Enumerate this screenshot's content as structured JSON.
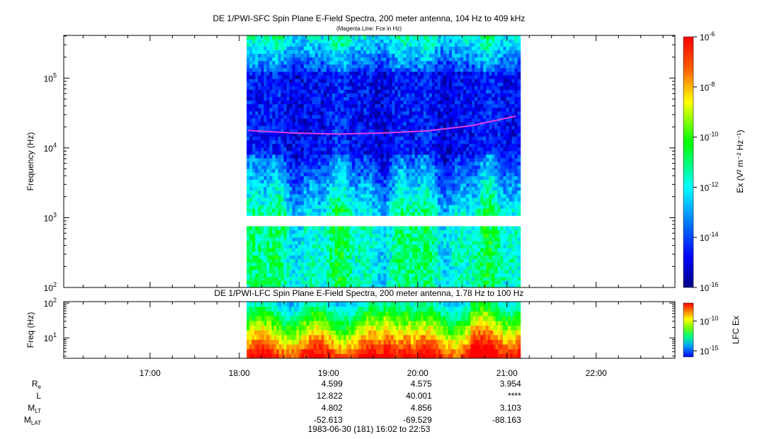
{
  "chart_data": [
    {
      "type": "heatmap",
      "title": "DE 1/PWI-SFC  Spin Plane E-Field Spectra, 200 meter antenna, 104 Hz to 409 kHz",
      "subtitle": "(Magenta Line: Fce in Hz)",
      "ylabel": "Frequency (Hz)",
      "yscale": "log",
      "ylim": [
        100,
        409000
      ],
      "y_ticks": [
        {
          "value": 100,
          "base": "10",
          "exp": "2"
        },
        {
          "value": 1000,
          "base": "10",
          "exp": "3"
        },
        {
          "value": 10000,
          "base": "10",
          "exp": "4"
        },
        {
          "value": 100000,
          "base": "10",
          "exp": "5"
        }
      ],
      "x_range_hours": [
        16.033,
        22.883
      ],
      "data_coverage_hours": [
        18.083,
        21.15
      ],
      "data_gap_hz": [
        800,
        1000
      ],
      "colorbar": {
        "label": "Ex (V² m⁻² Hz⁻¹)",
        "scale": "log",
        "range": [
          1e-16,
          1e-06
        ],
        "ticks": [
          {
            "value": 1e-16,
            "base": "10",
            "exp": "-16"
          },
          {
            "value": 1e-14,
            "base": "10",
            "exp": "-14"
          },
          {
            "value": 1e-12,
            "base": "10",
            "exp": "-12"
          },
          {
            "value": 1e-10,
            "base": "10",
            "exp": "-10"
          },
          {
            "value": 1e-08,
            "base": "10",
            "exp": "-8"
          },
          {
            "value": 1e-06,
            "base": "10",
            "exp": "-6"
          }
        ]
      },
      "fce_line": {
        "color": "#e040e0",
        "points": [
          [
            18.1,
            17800
          ],
          [
            18.6,
            16300
          ],
          [
            19.1,
            15800
          ],
          [
            19.6,
            16300
          ],
          [
            20.1,
            17500
          ],
          [
            20.6,
            20800
          ],
          [
            21.1,
            28500
          ]
        ]
      }
    },
    {
      "type": "heatmap",
      "title": "DE 1/PWI-LFC  Spin Plane E-Field Spectra, 200 meter antenna, 1.78 Hz to 100 Hz",
      "ylabel": "Freq (Hz)",
      "yscale": "log",
      "ylim": [
        2.6,
        110
      ],
      "y_ticks": [
        {
          "value": 10,
          "base": "10",
          "exp": "1"
        },
        {
          "value": 100,
          "base": "10",
          "exp": "2"
        }
      ],
      "data_coverage_hours": [
        18.083,
        21.15
      ],
      "colorbar": {
        "label": "LFC Ex",
        "scale": "log",
        "range": [
          1e-16,
          1e-07
        ],
        "ticks": [
          {
            "value": 1e-15,
            "base": "10",
            "exp": "-15"
          },
          {
            "value": 1e-10,
            "base": "10",
            "exp": "-10"
          }
        ]
      }
    }
  ],
  "x_axis": {
    "ticks": [
      {
        "hour": 17,
        "label": "17:00"
      },
      {
        "hour": 18,
        "label": "18:00"
      },
      {
        "hour": 19,
        "label": "19:00"
      },
      {
        "hour": 20,
        "label": "20:00"
      },
      {
        "hour": 21,
        "label": "21:00"
      },
      {
        "hour": 22,
        "label": "22:00"
      }
    ]
  },
  "ephemeris": {
    "rows": [
      {
        "label": "R",
        "sub": "e",
        "values": [
          {
            "hour": 19,
            "text": "4.599"
          },
          {
            "hour": 20,
            "text": "4.575"
          },
          {
            "hour": 21,
            "text": "3.954"
          }
        ]
      },
      {
        "label": "L",
        "sub": "",
        "values": [
          {
            "hour": 19,
            "text": "12.822"
          },
          {
            "hour": 20,
            "text": "40.001"
          },
          {
            "hour": 21,
            "text": "****"
          }
        ]
      },
      {
        "label": "M",
        "sub": "LT",
        "values": [
          {
            "hour": 19,
            "text": "4.802"
          },
          {
            "hour": 20,
            "text": "4.856"
          },
          {
            "hour": 21,
            "text": "3.103"
          }
        ]
      },
      {
        "label": "M",
        "sub": "LAT",
        "values": [
          {
            "hour": 19,
            "text": "-52.613"
          },
          {
            "hour": 20,
            "text": "-69.529"
          },
          {
            "hour": 21,
            "text": "-88.163"
          }
        ]
      }
    ],
    "date_range": "1983-06-30 (181) 16:02 to 22:53"
  }
}
